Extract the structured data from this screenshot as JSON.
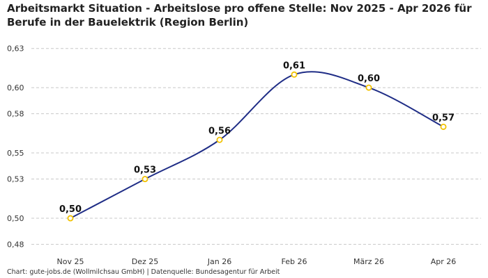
{
  "title": "Arbeitsmarkt Situation - Arbeitslose pro offene Stelle: Nov 2025 - Apr 2026 für Berufe in der Bauelektrik (Region Berlin)",
  "footer": "Chart: gute-jobs.de (Wollmilchsau GmbH) | Datenquelle: Bundesagentur für Arbeit",
  "colors": {
    "line": "#1f2d86",
    "marker": "#f2c200",
    "grid": "#c8c8c8"
  },
  "chart_data": {
    "type": "line",
    "categories": [
      "Nov 25",
      "Dez 25",
      "Jan 26",
      "Feb 26",
      "März 26",
      "Apr 26"
    ],
    "series": [
      {
        "values": [
          0.5,
          0.53,
          0.56,
          0.61,
          0.6,
          0.57
        ]
      }
    ],
    "data_labels": [
      "0,50",
      "0,53",
      "0,56",
      "0,61",
      "0,60",
      "0,57"
    ],
    "y_ticks": [
      0.48,
      0.5,
      0.53,
      0.55,
      0.58,
      0.6,
      0.63
    ],
    "y_tick_labels": [
      "0,48",
      "0,50",
      "0,53",
      "0,55",
      "0,58",
      "0,60",
      "0,63"
    ],
    "ylim": [
      0.475,
      0.6325
    ],
    "grid": true,
    "title": "",
    "xlabel": "",
    "ylabel": ""
  }
}
